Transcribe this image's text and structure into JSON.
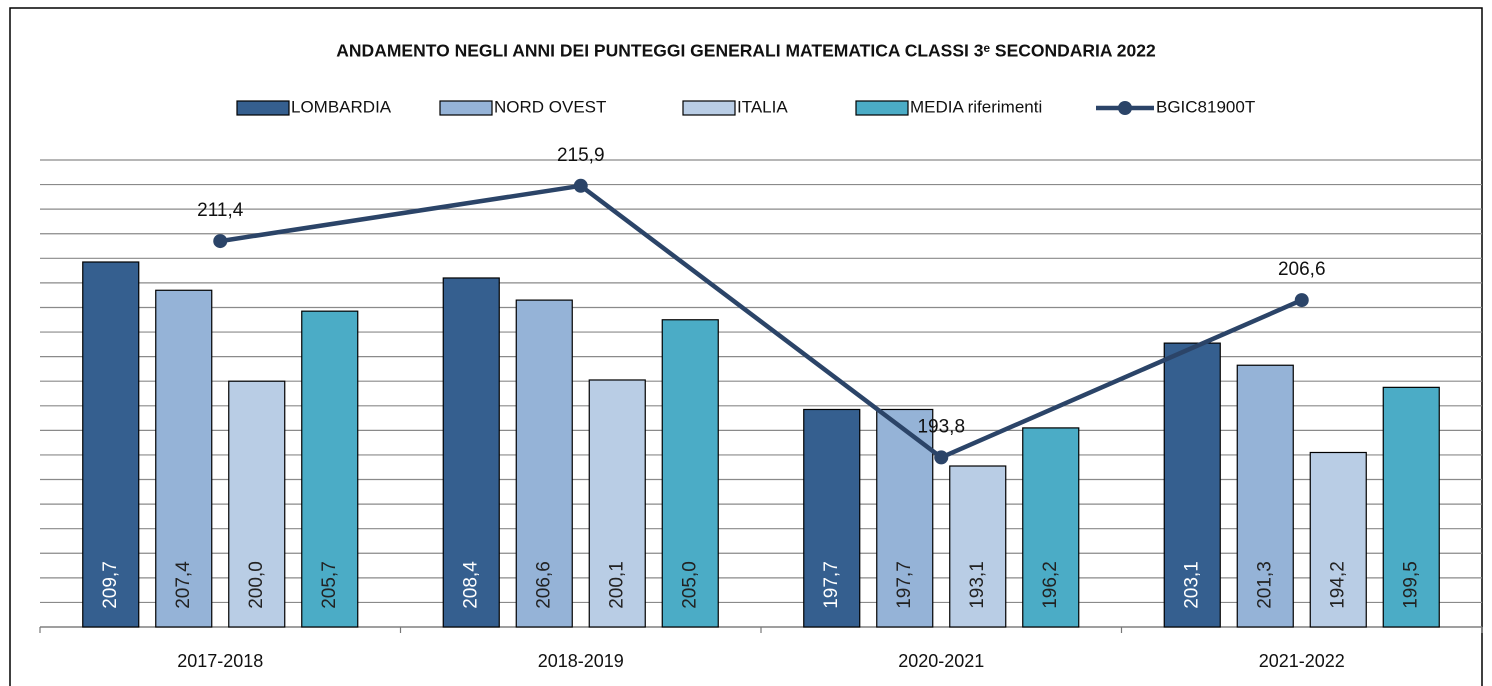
{
  "chart_data": {
    "type": "bar",
    "title": "ANDAMENTO NEGLI ANNI DEI PUNTEGGI GENERALI  MATEMATICA CLASSI 3ᵉ SECONDARIA 2022",
    "categories": [
      "2017-2018",
      "2018-2019",
      "2020-2021",
      "2021-2022"
    ],
    "series": [
      {
        "name": "LOMBARDIA",
        "color": "#355f8f",
        "values": [
          209.7,
          208.4,
          197.7,
          203.1
        ],
        "value_labels": [
          "209,7",
          "208,4",
          "197,7",
          "203,1"
        ]
      },
      {
        "name": "NORD OVEST",
        "color": "#95b3d7",
        "values": [
          207.4,
          206.6,
          197.7,
          201.3
        ],
        "value_labels": [
          "207,4",
          "206,6",
          "197,7",
          "201,3"
        ]
      },
      {
        "name": "ITALIA",
        "color": "#b9cde5",
        "values": [
          200.0,
          200.1,
          193.1,
          194.2
        ],
        "value_labels": [
          "200,0",
          "200,1",
          "193,1",
          "194,2"
        ]
      },
      {
        "name": "MEDIA riferimenti",
        "color": "#4bacc6",
        "values": [
          205.7,
          205.0,
          196.2,
          199.5
        ],
        "value_labels": [
          "205,7",
          "205,0",
          "196,2",
          "199,5"
        ]
      },
      {
        "name": "BGIC81900T",
        "type": "line",
        "color": "#2b4468",
        "values": [
          211.4,
          215.9,
          193.8,
          206.6
        ],
        "value_labels": [
          "211,4",
          "215,9",
          "193,8",
          "206,6"
        ]
      }
    ],
    "ylim": [
      180,
      218
    ],
    "yticks": [
      180,
      182,
      184,
      186,
      188,
      190,
      192,
      194,
      196,
      198,
      200,
      202,
      204,
      206,
      208,
      210,
      212,
      214,
      216,
      218
    ],
    "grid": true,
    "legend": "top"
  }
}
